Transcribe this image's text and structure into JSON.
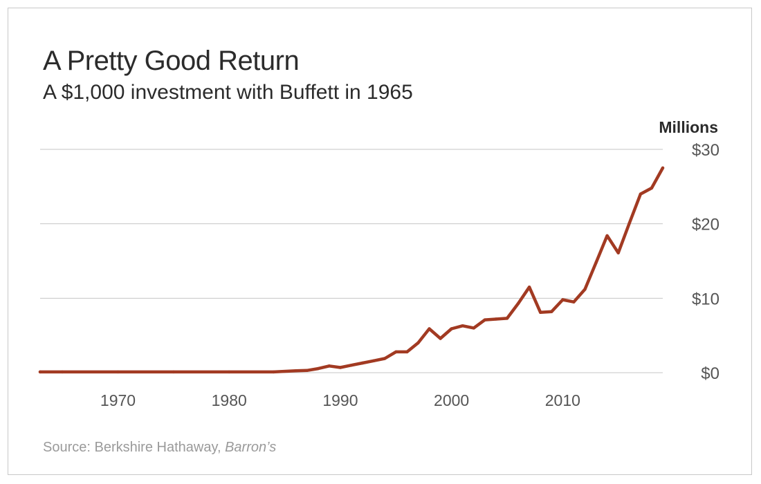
{
  "colors": {
    "line": "#a23a22",
    "text": "#2b2b2b",
    "muted": "#9a9a9a"
  },
  "source": {
    "prefix": "Source: Berkshire Hathaway, ",
    "italic": "Barron’s"
  },
  "chart_data": {
    "type": "line",
    "title": "A Pretty Good Return",
    "subtitle": "A $1,000 investment with Buffett in 1965",
    "units_label": "Millions",
    "xlabel": "",
    "ylabel": "",
    "xlim": [
      1963,
      2019
    ],
    "ylim": [
      0,
      30
    ],
    "grid": true,
    "legend": "none",
    "x_ticks": [
      {
        "value": 1970,
        "label": "1970"
      },
      {
        "value": 1980,
        "label": "1980"
      },
      {
        "value": 1990,
        "label": "1990"
      },
      {
        "value": 2000,
        "label": "2000"
      },
      {
        "value": 2010,
        "label": "2010"
      }
    ],
    "y_ticks": [
      {
        "value": 0,
        "label": "$0"
      },
      {
        "value": 10,
        "label": "$10"
      },
      {
        "value": 20,
        "label": "$20"
      },
      {
        "value": 30,
        "label": "$30"
      }
    ],
    "series": [
      {
        "x": [
          1963,
          1965,
          1970,
          1975,
          1980,
          1984,
          1986,
          1987,
          1988,
          1989,
          1990,
          1991,
          1992,
          1993,
          1994,
          1995,
          1996,
          1997,
          1998,
          1999,
          2000,
          2001,
          2002,
          2003,
          2004,
          2005,
          2006,
          2007,
          2008,
          2009,
          2010,
          2011,
          2012,
          2013,
          2014,
          2015,
          2016,
          2017,
          2018,
          2019
        ],
        "y": [
          0.1,
          0.1,
          0.1,
          0.1,
          0.1,
          0.1,
          0.25,
          0.3,
          0.55,
          0.9,
          0.7,
          1.0,
          1.3,
          1.6,
          1.9,
          2.8,
          2.8,
          4.0,
          5.9,
          4.6,
          5.9,
          6.3,
          6.0,
          7.1,
          7.2,
          7.3,
          9.3,
          11.5,
          8.1,
          8.2,
          9.8,
          9.5,
          11.2,
          14.8,
          18.4,
          16.1,
          20.1,
          24.0,
          24.8,
          27.5
        ]
      }
    ]
  }
}
